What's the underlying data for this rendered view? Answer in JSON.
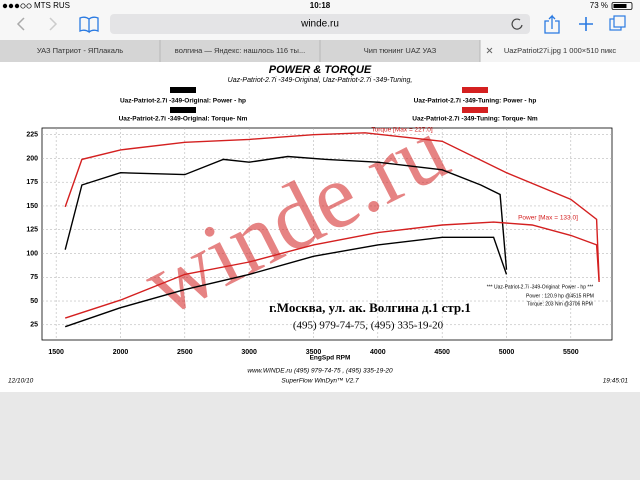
{
  "status_bar": {
    "carrier": "MTS RUS",
    "time": "10:18",
    "battery": "73 %"
  },
  "address_bar": {
    "url": "winde.ru"
  },
  "tabs": [
    "УАЗ Патриот - ЯПлакаль",
    "волгина — Яндекс: нашлось 116 ты...",
    "Чип тюнинг UAZ УАЗ",
    "UazPatriot27i.jpg 1 000×510 пикс"
  ],
  "chart_data": {
    "type": "line",
    "title": "POWER & TORQUE",
    "subtitle": "Uaz-Patriot-2.7i -349-Original, Uaz-Patriot-2.7i -349-Tuning,",
    "x_label": "EngSpd  RPM",
    "xlim": [
      1390,
      5820
    ],
    "ylim": [
      9,
      232
    ],
    "xticks": [
      1500,
      2000,
      2500,
      3000,
      3500,
      4000,
      4500,
      5000,
      5500
    ],
    "yticks": [
      25,
      50,
      75,
      100,
      125,
      150,
      175,
      200,
      225
    ],
    "grid": true,
    "series": [
      {
        "name": "Uaz-Patriot-2.7i -349-Original: Power - hp",
        "color": "#000000",
        "x": [
          1570,
          2000,
          2500,
          3000,
          3500,
          4000,
          4500,
          4900,
          5000
        ],
        "values": [
          23,
          43,
          62,
          78,
          97,
          109,
          117,
          117,
          78
        ]
      },
      {
        "name": "Uaz-Patriot-2.7i -349-Original: Torque- Nm",
        "color": "#000000",
        "x": [
          1570,
          1700,
          2000,
          2500,
          2800,
          3000,
          3300,
          3600,
          4000,
          4500,
          4800,
          4950,
          5000
        ],
        "values": [
          104,
          172,
          185,
          183,
          199,
          196,
          202,
          199,
          196,
          188,
          172,
          162,
          83
        ]
      },
      {
        "name": "Uaz-Patriot-2.7i -349-Tuning: Power - hp",
        "color": "#d42020",
        "x": [
          1570,
          2000,
          2500,
          3000,
          3500,
          4000,
          4500,
          4900,
          5200,
          5500,
          5700,
          5720
        ],
        "values": [
          32,
          51,
          78,
          91,
          109,
          122,
          130,
          133,
          130,
          119,
          109,
          70
        ]
      },
      {
        "name": "Uaz-Patriot-2.7i -349-Tuning: Torque- Nm",
        "color": "#d42020",
        "x": [
          1570,
          1700,
          2000,
          2500,
          3000,
          3500,
          3900,
          4500,
          5000,
          5500,
          5700,
          5720
        ],
        "values": [
          149,
          199,
          209,
          217,
          220,
          225,
          227,
          218,
          185,
          157,
          136,
          72
        ]
      }
    ],
    "annotations": [
      "Torque [Max = 227.0]",
      "Power  [Max = 133.0]",
      "г.Москва, ул. ак. Волгина д.1 стр.1",
      "(495) 979-74-75, (495) 335-19-20",
      "*** Uaz-Patriot-2.7i -349-Original: Power - hp ***",
      "Power :  120.9 hp   @4515 RPM",
      "Torque:   203 Nm   @3706 RPM",
      "winde.ru"
    ],
    "footer": [
      "www.WINDE.ru  (495) 979-74-75 , (495) 335-19-20",
      "SuperFlow WinDyn™ V2.7"
    ],
    "date": "12/10/10",
    "clock": "19:45:01"
  }
}
